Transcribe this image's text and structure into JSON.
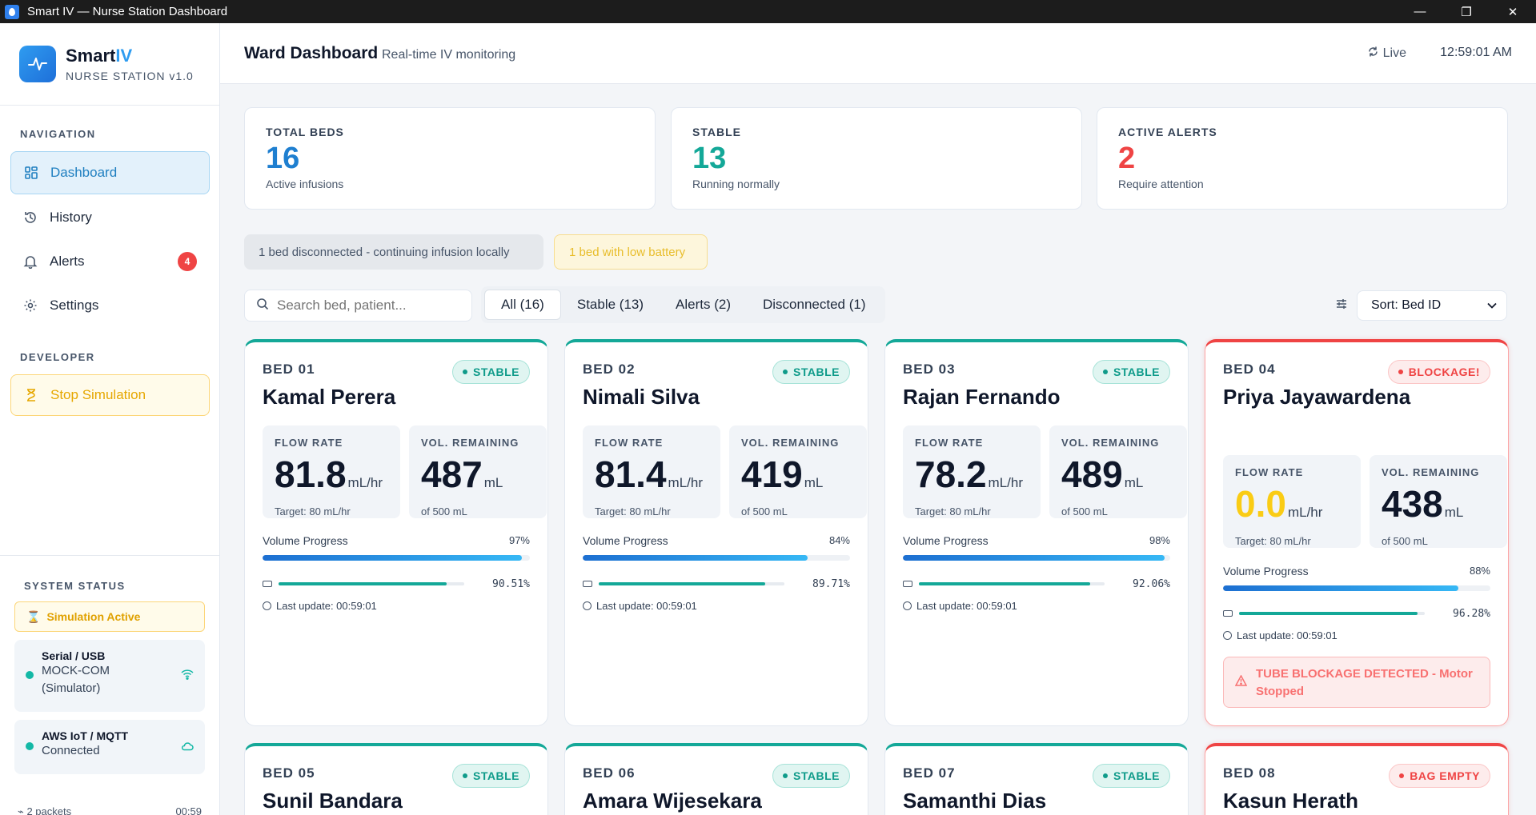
{
  "window": {
    "title": "Smart IV — Nurse Station Dashboard",
    "minimize": "—",
    "maximize": "❐",
    "close": "✕"
  },
  "brand": {
    "name": "Smart",
    "name_accent": "IV",
    "subtitle": "NURSE STATION v1.0"
  },
  "nav": {
    "heading": "NAVIGATION",
    "items": [
      {
        "label": "Dashboard",
        "icon": "grid-icon",
        "active": true
      },
      {
        "label": "History",
        "icon": "history-icon"
      },
      {
        "label": "Alerts",
        "icon": "bell-icon",
        "badge": "4"
      },
      {
        "label": "Settings",
        "icon": "gear-icon"
      }
    ],
    "developer_heading": "DEVELOPER",
    "stop_simulation": "Stop Simulation"
  },
  "system_status": {
    "heading": "SYSTEM STATUS",
    "simulation": "Simulation Active",
    "serial": {
      "title": "Serial / USB",
      "line1": "MOCK-COM",
      "line2": "(Simulator)"
    },
    "aws": {
      "title": "AWS IoT / MQTT",
      "line1": "Connected"
    },
    "packets": "2 packets",
    "packets_time": "00:59"
  },
  "header": {
    "title": "Ward Dashboard",
    "subtitle": "Real-time IV monitoring",
    "live": "Live",
    "time": "12:59:01 AM"
  },
  "stats": [
    {
      "label": "TOTAL BEDS",
      "value": "16",
      "note": "Active infusions",
      "color": "#1f7fd0"
    },
    {
      "label": "STABLE",
      "value": "13",
      "note": "Running normally",
      "color": "#14a898"
    },
    {
      "label": "ACTIVE ALERTS",
      "value": "2",
      "note": "Require attention",
      "color": "#ef4444"
    }
  ],
  "notices": {
    "disconnected": "1 bed disconnected - continuing infusion locally",
    "low_battery": "1 bed with low battery"
  },
  "search": {
    "placeholder": "Search bed, patient..."
  },
  "filters": [
    "All (16)",
    "Stable (13)",
    "Alerts (2)",
    "Disconnected (1)"
  ],
  "sort": {
    "label": "Sort: Bed ID"
  },
  "labels": {
    "flow_rate": "FLOW RATE",
    "vol_remaining": "VOL. REMAINING",
    "flow_unit": "mL/hr",
    "vol_unit": "mL",
    "volume_progress": "Volume Progress"
  },
  "beds": [
    {
      "id": "BED 01",
      "name": "Kamal Perera",
      "status": "STABLE",
      "flow": "81.8",
      "target": "Target: 80 mL/hr",
      "volume": "487",
      "of": "of 500 mL",
      "progress": "97%",
      "progress_value": 0.97,
      "battery": "90.51%",
      "battery_value": 0.9051,
      "updated": "Last update: 00:59:01"
    },
    {
      "id": "BED 02",
      "name": "Nimali Silva",
      "status": "STABLE",
      "flow": "81.4",
      "target": "Target: 80 mL/hr",
      "volume": "419",
      "of": "of 500 mL",
      "progress": "84%",
      "progress_value": 0.84,
      "battery": "89.71%",
      "battery_value": 0.8971,
      "updated": "Last update: 00:59:01"
    },
    {
      "id": "BED 03",
      "name": "Rajan Fernando",
      "status": "STABLE",
      "flow": "78.2",
      "target": "Target: 80 mL/hr",
      "volume": "489",
      "of": "of 500 mL",
      "progress": "98%",
      "progress_value": 0.98,
      "battery": "92.06%",
      "battery_value": 0.9206,
      "updated": "Last update: 00:59:01"
    },
    {
      "id": "BED 04",
      "name": "Priya Jayawardena",
      "status": "BLOCKAGE!",
      "flow": "0.0",
      "flow_color": "#facc15",
      "target": "Target: 80 mL/hr",
      "volume": "438",
      "of": "of 500 mL",
      "progress": "88%",
      "progress_value": 0.88,
      "battery": "96.28%",
      "battery_value": 0.9628,
      "updated": "Last update: 00:59:01",
      "alert": "TUBE BLOCKAGE DETECTED - Motor Stopped"
    },
    {
      "id": "BED 05",
      "name": "Sunil Bandara",
      "status": "STABLE"
    },
    {
      "id": "BED 06",
      "name": "Amara Wijesekara",
      "status": "STABLE"
    },
    {
      "id": "BED 07",
      "name": "Samanthi Dias",
      "status": "STABLE"
    },
    {
      "id": "BED 08",
      "name": "Kasun Herath",
      "status": "BAG EMPTY"
    }
  ]
}
